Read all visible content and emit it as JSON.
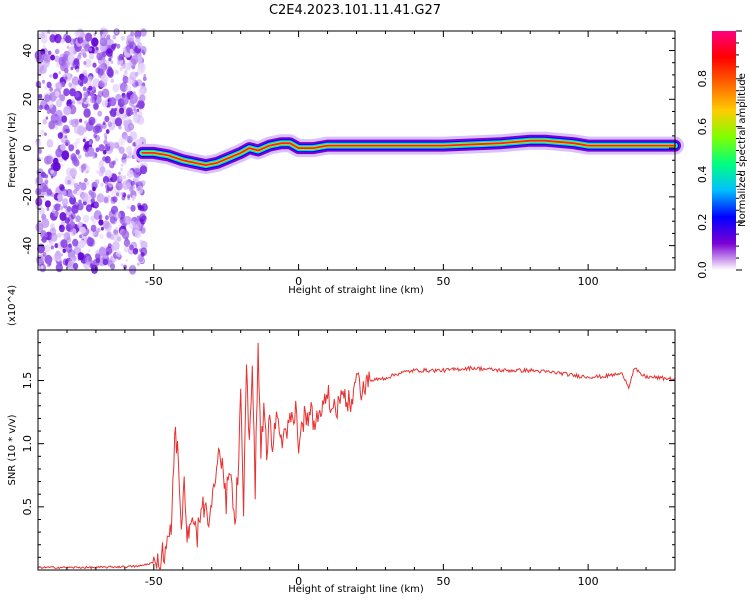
{
  "title": "C2E4.2023.101.11.41.G27",
  "chart_data": [
    {
      "type": "heatmap",
      "xlabel": "Height of straight line (km)",
      "ylabel": "Frequency (Hz)",
      "xlim": [
        -90,
        130
      ],
      "ylim": [
        -50,
        48
      ],
      "xticks": [
        -50,
        0,
        50,
        100
      ],
      "yticks": [
        -40,
        -20,
        0,
        20,
        40
      ],
      "colorbar": {
        "label": "Normalized spectral amplitude",
        "range": [
          0.0,
          1.0
        ],
        "ticks": [
          "0.0",
          "0.2",
          "0.4",
          "0.6",
          "0.8"
        ],
        "colormap": [
          "#ffffff",
          "#7b00d4",
          "#0000ff",
          "#00bfff",
          "#00ff80",
          "#80ff00",
          "#ffcc00",
          "#ff6600",
          "#ff0000",
          "#ff0080"
        ]
      },
      "noise_region": {
        "x": [
          -90,
          -53
        ],
        "f": [
          -50,
          48
        ]
      },
      "ridge": {
        "x": [
          -54,
          -50,
          -45,
          -40,
          -36,
          -32,
          -28,
          -24,
          -20,
          -17,
          -14,
          -10,
          -6,
          -3,
          0,
          5,
          10,
          20,
          30,
          50,
          70,
          80,
          85,
          95,
          100,
          110,
          120,
          130
        ],
        "f": [
          -2,
          -2,
          -3,
          -5,
          -6,
          -7,
          -6,
          -4,
          -2,
          0,
          -1,
          1,
          2,
          2,
          0,
          0,
          1,
          1,
          1,
          1,
          2,
          3,
          3,
          2,
          1,
          1,
          1,
          1
        ]
      }
    },
    {
      "type": "line",
      "xlabel": "Height of straight line (km)",
      "ylabel": "SNR (10 * v/v)",
      "multiplier": "(x10^4)",
      "xlim": [
        -90,
        130
      ],
      "ylim": [
        0.0,
        1.9
      ],
      "xticks": [
        -50,
        0,
        50,
        100
      ],
      "yticks": [
        "0.5",
        "1.0",
        "1.5"
      ],
      "color": "#e83232",
      "series": [
        {
          "x": [
            -90,
            -70,
            -55,
            -50,
            -46,
            -44,
            -42.5,
            -41.5,
            -40.5,
            -39.5,
            -38.5,
            -37,
            -35,
            -33,
            -31,
            -29,
            -27,
            -25,
            -24,
            -22,
            -21,
            -20,
            -19,
            -18,
            -17,
            -16,
            -15,
            -14,
            -13,
            -12,
            -11,
            -10,
            -9,
            -8,
            -6,
            -4,
            -2,
            -1,
            0,
            2,
            4,
            6,
            8,
            10,
            12,
            15,
            18,
            20,
            22,
            25,
            30,
            35,
            40,
            50,
            60,
            70,
            80,
            90,
            95,
            100,
            105,
            110,
            112,
            114,
            116,
            118,
            120,
            125,
            130
          ],
          "y": [
            0.02,
            0.02,
            0.03,
            0.06,
            0.15,
            0.4,
            1.1,
            0.8,
            0.35,
            0.7,
            0.25,
            0.35,
            0.3,
            0.5,
            0.35,
            0.7,
            0.95,
            0.5,
            0.85,
            0.4,
            0.7,
            1.45,
            0.5,
            1.7,
            1.0,
            1.6,
            0.6,
            1.85,
            0.9,
            1.35,
            0.85,
            1.2,
            0.95,
            1.2,
            1.0,
            1.1,
            1.2,
            1.3,
            1.0,
            1.2,
            1.3,
            1.15,
            1.3,
            1.4,
            1.25,
            1.4,
            1.3,
            1.5,
            1.45,
            1.5,
            1.52,
            1.56,
            1.58,
            1.58,
            1.6,
            1.58,
            1.58,
            1.56,
            1.54,
            1.53,
            1.53,
            1.55,
            1.55,
            1.45,
            1.6,
            1.55,
            1.53,
            1.52,
            1.51
          ]
        }
      ]
    }
  ]
}
